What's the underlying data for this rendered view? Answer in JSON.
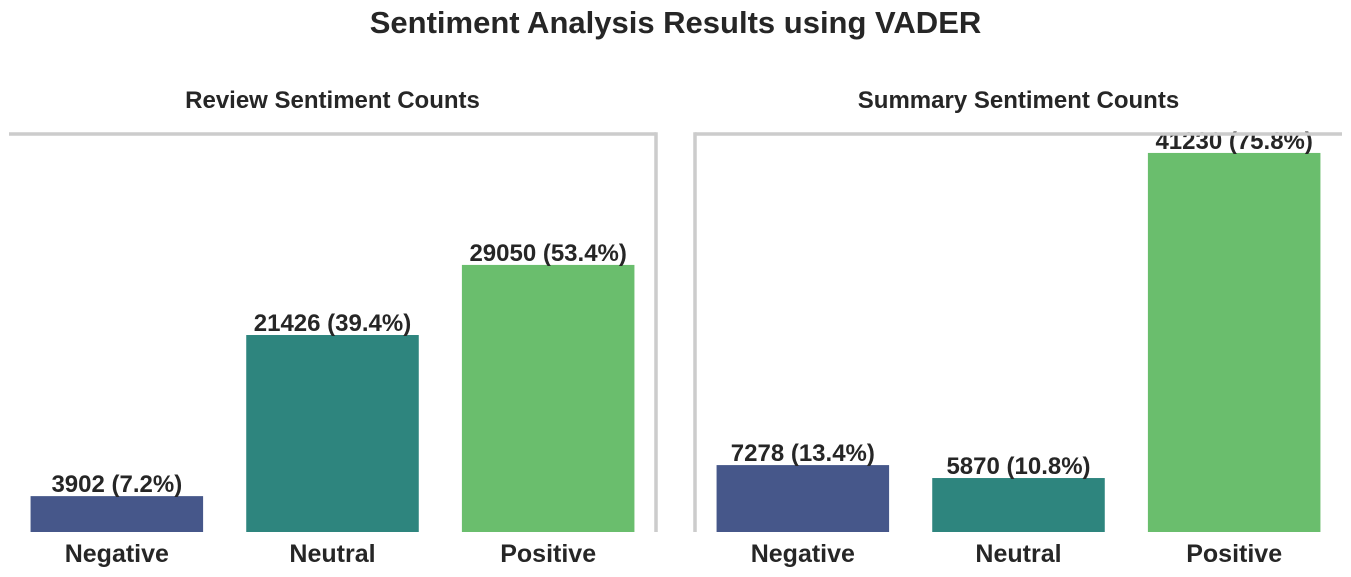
{
  "suptitle": "Sentiment Analysis Results using VADER",
  "chart_data": [
    {
      "type": "bar",
      "title": "Review Sentiment Counts",
      "categories": [
        "Negative",
        "Neutral",
        "Positive"
      ],
      "values": [
        3902,
        21426,
        29050
      ],
      "labels": [
        "3902 (7.2%)",
        "21426 (39.4%)",
        "29050 (53.4%)"
      ],
      "colors": [
        "#46578a",
        "#2e857e",
        "#6abe6d"
      ],
      "xlabel": "",
      "ylabel": "",
      "ylim": [
        0,
        43290
      ],
      "grid": false,
      "spines": [
        "top",
        "right"
      ]
    },
    {
      "type": "bar",
      "title": "Summary Sentiment Counts",
      "categories": [
        "Negative",
        "Neutral",
        "Positive"
      ],
      "values": [
        7278,
        5870,
        41230
      ],
      "labels": [
        "7278 (13.4%)",
        "5870 (10.8%)",
        "41230 (75.8%)"
      ],
      "colors": [
        "#46578a",
        "#2e857e",
        "#6abe6d"
      ],
      "xlabel": "",
      "ylabel": "",
      "ylim": [
        0,
        43290
      ],
      "grid": false,
      "spines": [
        "top",
        "left"
      ]
    }
  ]
}
